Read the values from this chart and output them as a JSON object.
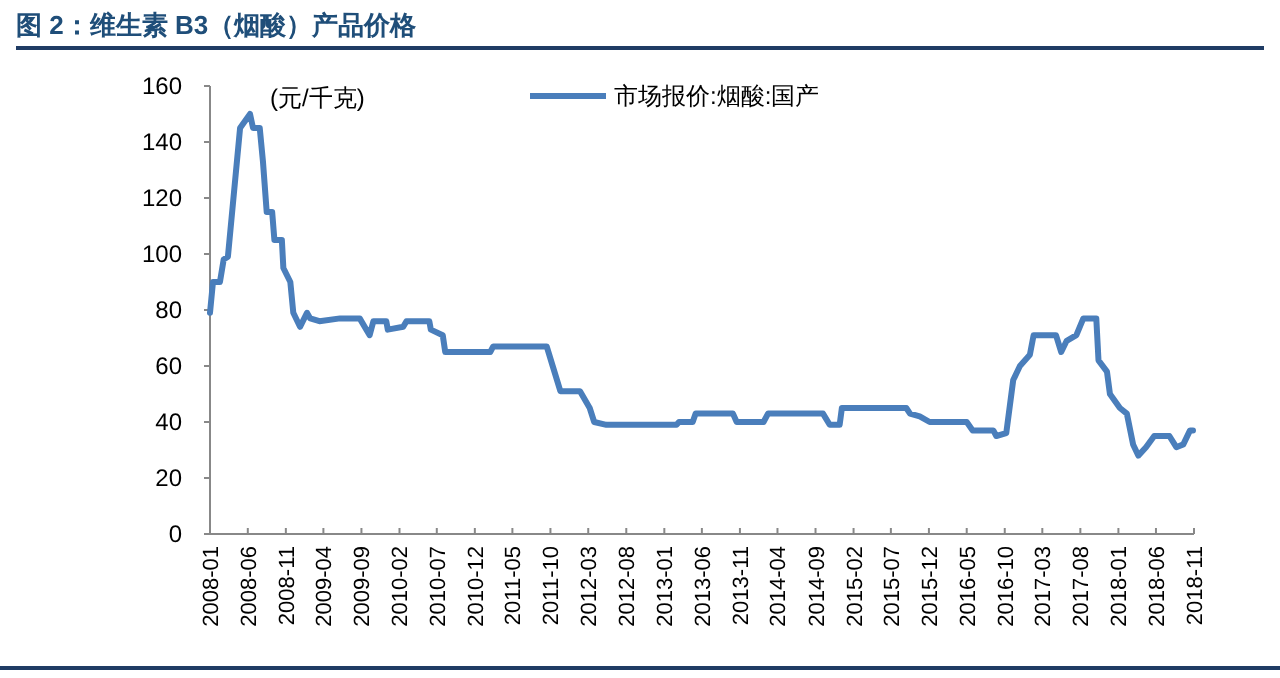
{
  "chart_data": {
    "type": "line",
    "title": "图 2：维生素 B3（烟酸）产品价格",
    "annotations": [
      "(元/千克)"
    ],
    "x": [
      "2008-01-01",
      "2008-01-13",
      "2008-02-10",
      "2008-02-25",
      "2008-03-13",
      "2008-05-01",
      "2008-06-10",
      "2008-06-22",
      "2008-07-19",
      "2008-08-01",
      "2008-08-16",
      "2008-09-07",
      "2008-09-16",
      "2008-10-16",
      "2008-10-22",
      "2008-11-19",
      "2008-12-01",
      "2008-12-28",
      "2009-01-25",
      "2009-02-07",
      "2009-03-16",
      "2009-06-07",
      "2009-08-25",
      "2009-10-04",
      "2009-10-19",
      "2009-12-10",
      "2009-12-16",
      "2010-02-16",
      "2010-03-01",
      "2010-06-01",
      "2010-06-07",
      "2010-07-25",
      "2010-08-04",
      "2011-02-01",
      "2011-02-13",
      "2011-06-01",
      "2011-09-16",
      "2011-10-10",
      "2011-11-10",
      "2012-01-28",
      "2012-03-07",
      "2012-03-25",
      "2012-05-13",
      "2013-02-19",
      "2013-03-01",
      "2013-04-25",
      "2013-05-07",
      "2013-10-04",
      "2013-10-19",
      "2014-02-04",
      "2014-02-22",
      "2014-10-01",
      "2014-10-28",
      "2014-12-07",
      "2014-12-16",
      "2015-09-01",
      "2015-09-16",
      "2015-10-25",
      "2015-12-04",
      "2016-05-01",
      "2016-05-25",
      "2016-08-16",
      "2016-08-28",
      "2016-10-07",
      "2016-11-04",
      "2016-12-01",
      "2017-01-10",
      "2017-01-25",
      "2017-04-25",
      "2017-05-16",
      "2017-06-07",
      "2017-07-16",
      "2017-08-13",
      "2017-10-04",
      "2017-10-13",
      "2017-11-16",
      "2017-11-28",
      "2018-01-07",
      "2018-02-04",
      "2018-03-01",
      "2018-03-22",
      "2018-04-22",
      "2018-05-25",
      "2018-07-25",
      "2018-08-22",
      "2018-09-19",
      "2018-10-16",
      "2018-10-28"
    ],
    "series": [
      {
        "name": "市场报价:烟酸:国产",
        "color": "#4a7ebb",
        "values": [
          79,
          90,
          90,
          98,
          99,
          145,
          150,
          145,
          145,
          133,
          115,
          115,
          105,
          105,
          95,
          90,
          79,
          74,
          79,
          77,
          76,
          77,
          77,
          71,
          76,
          76,
          73,
          74,
          76,
          76,
          73,
          71,
          65,
          65,
          67,
          67,
          67,
          60,
          51,
          51,
          45,
          40,
          39,
          39,
          40,
          40,
          43,
          43,
          40,
          40,
          43,
          43,
          39,
          39,
          45,
          45,
          43,
          42,
          40,
          40,
          37,
          37,
          35,
          36,
          55,
          60,
          64,
          71,
          71,
          65,
          69,
          71,
          77,
          77,
          62,
          58,
          50,
          45,
          43,
          32,
          28,
          31,
          35,
          35,
          31,
          32,
          37,
          37
        ]
      }
    ],
    "xlim": [
      "2008-01",
      "2018-11"
    ],
    "xticks": [
      "2008-01",
      "2008-06",
      "2008-11",
      "2009-04",
      "2009-09",
      "2010-02",
      "2010-07",
      "2010-12",
      "2011-05",
      "2011-10",
      "2012-03",
      "2012-08",
      "2013-01",
      "2013-06",
      "2013-11",
      "2014-04",
      "2014-09",
      "2015-02",
      "2015-07",
      "2015-12",
      "2016-05",
      "2016-10",
      "2017-03",
      "2017-08",
      "2018-01",
      "2018-06",
      "2018-11"
    ],
    "ylim": [
      0,
      160
    ],
    "yticks": [
      0,
      20,
      40,
      60,
      80,
      100,
      120,
      140,
      160
    ],
    "grid": false,
    "legend": "top"
  }
}
